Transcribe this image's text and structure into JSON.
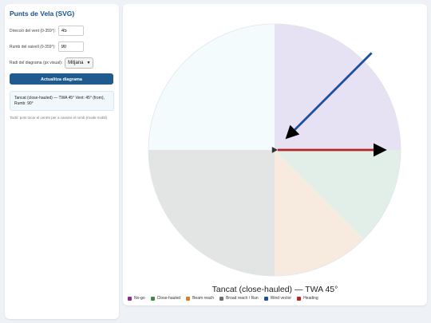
{
  "sidebar": {
    "title": "Punts de Vela (SVG)",
    "wind_label": "Direcció del vent (0-359°):",
    "wind_value": "45",
    "heading_label": "Rumb del vaixell (0-359°):",
    "heading_value": "90",
    "radius_label": "Radi del diagrama (px visual):",
    "radius_value": "Mitjana",
    "update_button": "Actualitza diagrama",
    "status": "Tancat (close-hauled) — TWA 45° Vent: 45° (from), Rumb: 90°",
    "hint": "Tactil: pots tocar el centre per a canviar el rumb (mode mobil)."
  },
  "diagram": {
    "caption": "Tancat (close-hauled) — TWA 45°",
    "wind_direction_deg": 45,
    "heading_deg": 90,
    "sector_colors": {
      "ne": "#e6e1f3",
      "nw": "#f4fbfd",
      "e_se": "#e2efe9",
      "se_s": "#f7ebe0",
      "sw_w": "#e3e5e5"
    },
    "wind_color": "#1f4ea0",
    "heading_color": "#b22626"
  },
  "legend": [
    {
      "label": "No-go",
      "color": "#8b2f8b"
    },
    {
      "label": "Close-hauled",
      "color": "#3e8b3e"
    },
    {
      "label": "Beam reach",
      "color": "#e07b22"
    },
    {
      "label": "Broad reach / Run",
      "color": "#6e6e6e"
    },
    {
      "label": "Wind vector",
      "color": "#1f4ea0"
    },
    {
      "label": "Heading",
      "color": "#b22626"
    }
  ]
}
